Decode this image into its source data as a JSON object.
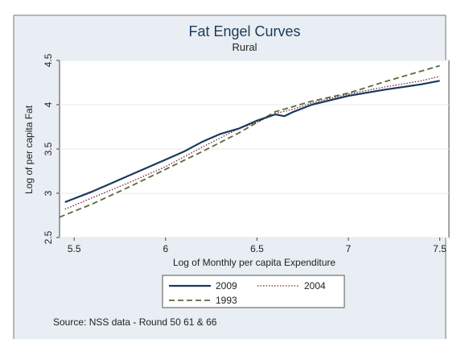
{
  "chart_data": {
    "type": "line",
    "title": "Fat Engel Curves",
    "subtitle": "Rural",
    "xlabel": "Log of Monthly per capita Expenditure",
    "ylabel": "Log of per capita Fat",
    "xlim": [
      5.42,
      7.55
    ],
    "ylim": [
      2.5,
      4.5
    ],
    "x_ticks": [
      "5.5",
      "6",
      "6.5",
      "7",
      "7.5"
    ],
    "y_ticks": [
      "2.5",
      "3",
      "3.5",
      "4",
      "4.5"
    ],
    "grid": true,
    "legend_position": "bottom",
    "series": [
      {
        "name": "2009",
        "color": "#1a3a5c",
        "style": "solid",
        "x": [
          5.45,
          5.6,
          5.8,
          6.0,
          6.1,
          6.2,
          6.3,
          6.4,
          6.5,
          6.6,
          6.65,
          6.7,
          6.8,
          7.0,
          7.2,
          7.4,
          7.5
        ],
        "y": [
          2.9,
          3.02,
          3.2,
          3.38,
          3.47,
          3.58,
          3.67,
          3.73,
          3.82,
          3.89,
          3.87,
          3.92,
          4.0,
          4.1,
          4.17,
          4.23,
          4.27
        ]
      },
      {
        "name": "2004",
        "color": "#7a2030",
        "style": "dotted",
        "x": [
          5.45,
          5.6,
          5.8,
          6.0,
          6.2,
          6.4,
          6.5,
          6.6,
          6.7,
          6.8,
          7.0,
          7.2,
          7.4,
          7.5
        ],
        "y": [
          2.82,
          2.95,
          3.12,
          3.3,
          3.52,
          3.73,
          3.8,
          3.9,
          3.95,
          4.02,
          4.12,
          4.2,
          4.27,
          4.32
        ]
      },
      {
        "name": "1993",
        "color": "#5a6a3a",
        "style": "dashed",
        "x": [
          5.42,
          5.6,
          5.8,
          6.0,
          6.2,
          6.4,
          6.5,
          6.6,
          6.7,
          6.8,
          7.0,
          7.2,
          7.4,
          7.5
        ],
        "y": [
          2.73,
          2.88,
          3.07,
          3.27,
          3.47,
          3.68,
          3.8,
          3.92,
          3.98,
          4.04,
          4.13,
          4.26,
          4.38,
          4.44
        ]
      }
    ]
  },
  "source_note": "Source: NSS data - Round 50 61 & 66"
}
